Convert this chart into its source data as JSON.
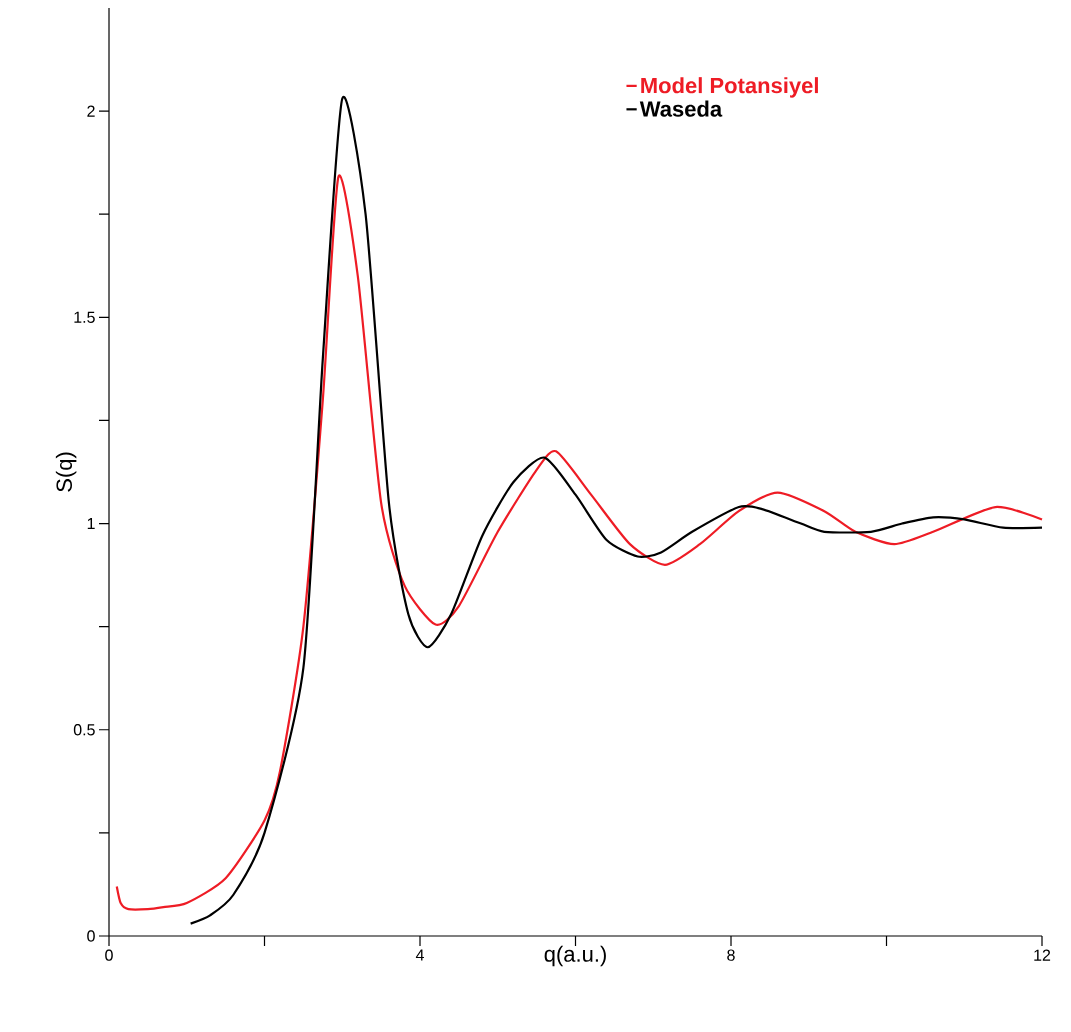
{
  "chart_data": {
    "type": "line",
    "xlabel": "q(a.u.)",
    "ylabel": "S(q)",
    "xlim": [
      0,
      12
    ],
    "ylim": [
      0,
      2.25
    ],
    "xticks": [
      0,
      {
        "value": 2,
        "label": null
      },
      4,
      {
        "value": 6,
        "label": null
      },
      8,
      {
        "value": 10,
        "label": null
      },
      12
    ],
    "yticks": [
      0,
      {
        "value": 0.25,
        "label": null
      },
      0.5,
      {
        "value": 0.75,
        "label": null
      },
      1,
      {
        "value": 1.25,
        "label": null
      },
      1.5,
      {
        "value": 1.75,
        "label": null
      },
      2
    ],
    "legend": "top right",
    "grid": false,
    "marker": "none",
    "line_style": "solid",
    "series": [
      {
        "name": "Model Potansiyel",
        "color": "#ee1c25",
        "x": [
          0.1,
          0.15,
          0.25,
          0.5,
          0.7,
          1.0,
          1.5,
          2.0,
          2.2,
          2.5,
          2.75,
          2.95,
          3.2,
          3.5,
          3.8,
          4.2,
          4.5,
          5.0,
          5.5,
          5.75,
          6.2,
          6.7,
          7.15,
          7.6,
          8.1,
          8.6,
          9.2,
          9.6,
          10.1,
          10.6,
          11.4,
          12.0
        ],
        "values": [
          0.12,
          0.08,
          0.065,
          0.065,
          0.07,
          0.08,
          0.14,
          0.28,
          0.4,
          0.75,
          1.3,
          1.84,
          1.6,
          1.05,
          0.85,
          0.755,
          0.8,
          0.98,
          1.13,
          1.175,
          1.07,
          0.95,
          0.9,
          0.95,
          1.03,
          1.075,
          1.03,
          0.98,
          0.95,
          0.98,
          1.04,
          1.01
        ]
      },
      {
        "name": "Waseda",
        "color": "#000000",
        "x": [
          1.05,
          1.3,
          1.6,
          2.0,
          2.5,
          2.75,
          3.0,
          3.3,
          3.6,
          3.85,
          4.1,
          4.4,
          4.8,
          5.2,
          5.6,
          6.0,
          6.4,
          6.8,
          7.1,
          7.5,
          8.1,
          8.4,
          8.9,
          9.2,
          9.8,
          10.2,
          10.6,
          11.0,
          11.5,
          12.0
        ],
        "values": [
          0.03,
          0.05,
          0.1,
          0.25,
          0.65,
          1.4,
          2.03,
          1.75,
          1.05,
          0.78,
          0.7,
          0.78,
          0.97,
          1.1,
          1.16,
          1.07,
          0.96,
          0.92,
          0.93,
          0.98,
          1.04,
          1.035,
          1.0,
          0.98,
          0.98,
          1.0,
          1.015,
          1.01,
          0.99,
          0.99
        ]
      }
    ]
  }
}
